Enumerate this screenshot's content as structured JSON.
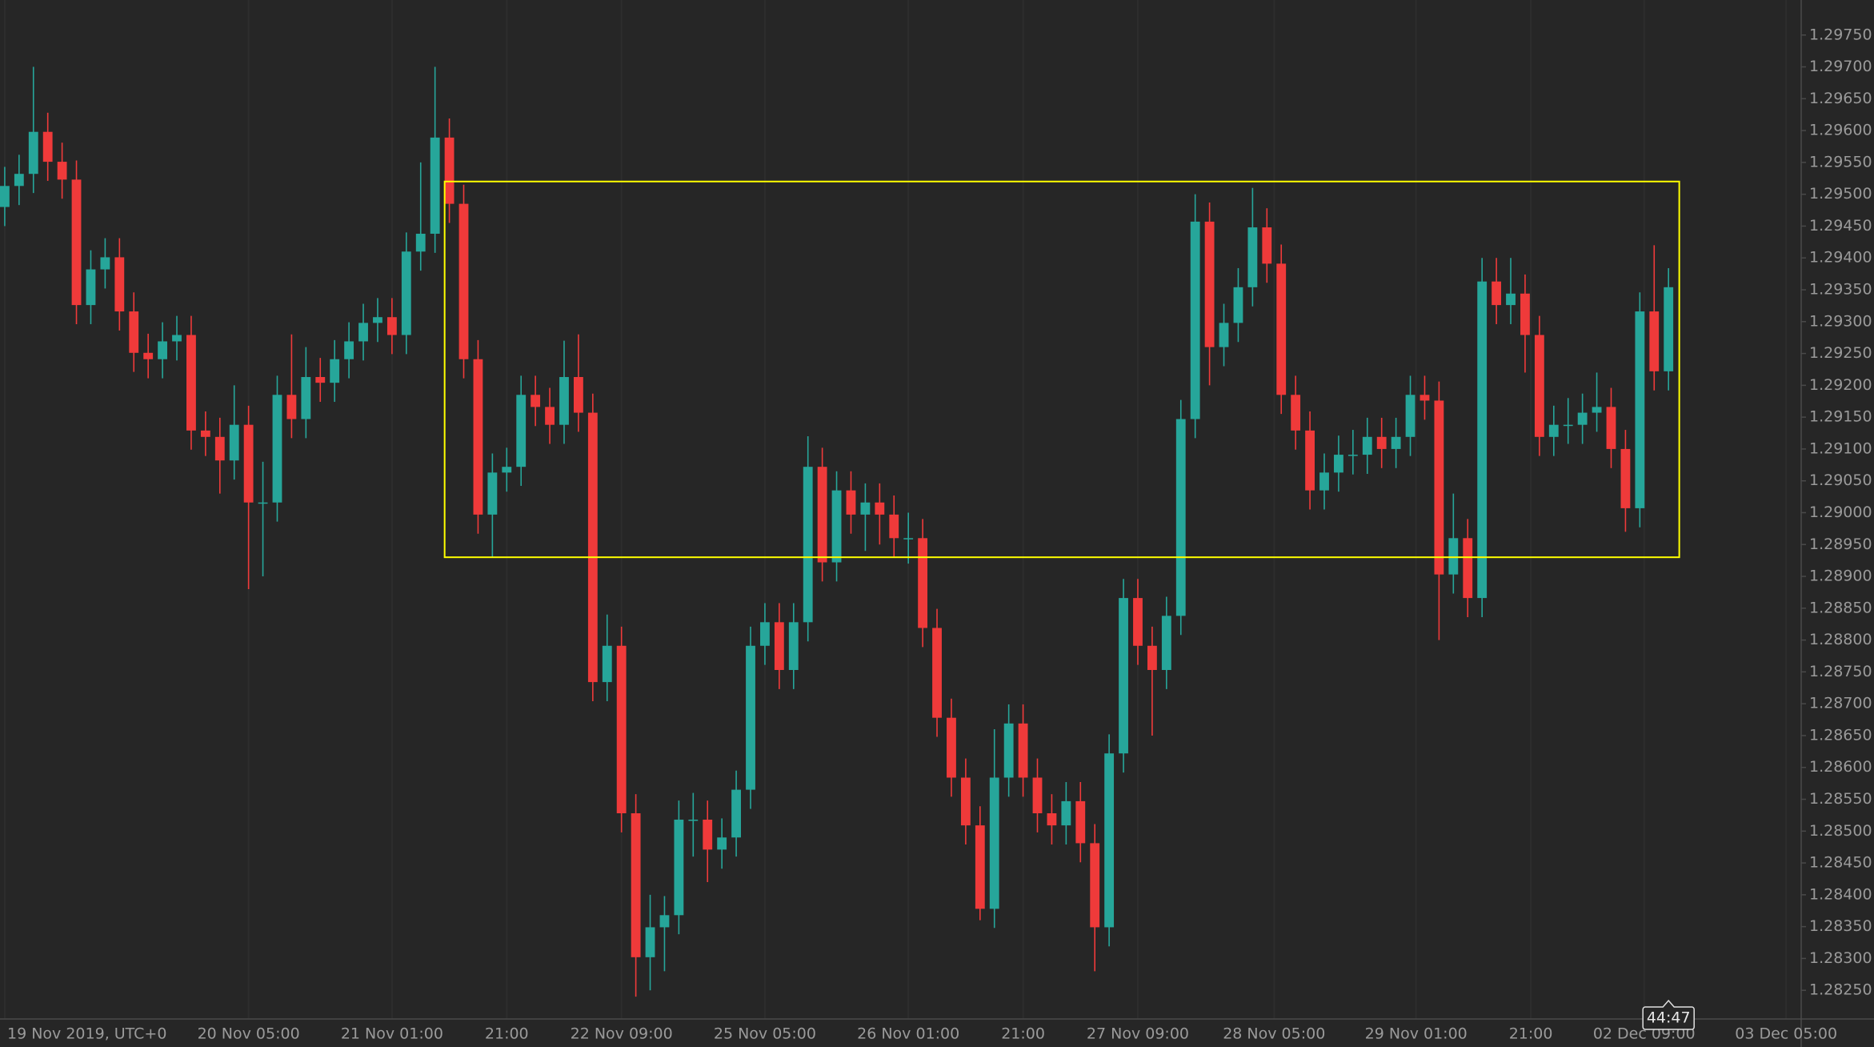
{
  "chart_data": {
    "type": "candlestick",
    "up_color": "#26a69a",
    "down_color": "#ef3a3a",
    "grid": true,
    "xlim": [
      -0.33,
      125.25
    ],
    "ylim": [
      1.28205,
      1.29805
    ],
    "rectangle": {
      "x": [
        30.67,
        116.75
      ],
      "y": [
        1.2893,
        1.2952
      ],
      "color": "#ffff00"
    },
    "countdown": "44:47",
    "xticks": [
      {
        "value": 0,
        "label": "19 Nov 2019, UTC+0"
      },
      {
        "value": 17,
        "label": "20 Nov 05:00"
      },
      {
        "value": 27,
        "label": "21 Nov 01:00"
      },
      {
        "value": 35,
        "label": "21:00"
      },
      {
        "value": 43,
        "label": "22 Nov 09:00"
      },
      {
        "value": 53,
        "label": "25 Nov 05:00"
      },
      {
        "value": 63,
        "label": "26 Nov 01:00"
      },
      {
        "value": 71,
        "label": "21:00"
      },
      {
        "value": 79,
        "label": "27 Nov 09:00"
      },
      {
        "value": 88.5,
        "label": "28 Nov 05:00"
      },
      {
        "value": 98.4,
        "label": "29 Nov 01:00"
      },
      {
        "value": 106.4,
        "label": "21:00"
      },
      {
        "value": 114.3,
        "label": "02 Dec 09:00"
      },
      {
        "value": 124.2,
        "label": "03 Dec 05:00"
      }
    ],
    "yticks": [
      {
        "value": 1.2825,
        "label": "1.28250"
      },
      {
        "value": 1.283,
        "label": "1.28300"
      },
      {
        "value": 1.2835,
        "label": "1.28350"
      },
      {
        "value": 1.284,
        "label": "1.28400"
      },
      {
        "value": 1.2845,
        "label": "1.28450"
      },
      {
        "value": 1.285,
        "label": "1.28500"
      },
      {
        "value": 1.2855,
        "label": "1.28550"
      },
      {
        "value": 1.286,
        "label": "1.28600"
      },
      {
        "value": 1.2865,
        "label": "1.28650"
      },
      {
        "value": 1.287,
        "label": "1.28700"
      },
      {
        "value": 1.2875,
        "label": "1.28750"
      },
      {
        "value": 1.288,
        "label": "1.28800"
      },
      {
        "value": 1.2885,
        "label": "1.28850"
      },
      {
        "value": 1.289,
        "label": "1.28900"
      },
      {
        "value": 1.2895,
        "label": "1.28950"
      },
      {
        "value": 1.29,
        "label": "1.29000"
      },
      {
        "value": 1.2905,
        "label": "1.29050"
      },
      {
        "value": 1.291,
        "label": "1.29100"
      },
      {
        "value": 1.2915,
        "label": "1.29150"
      },
      {
        "value": 1.292,
        "label": "1.29200"
      },
      {
        "value": 1.2925,
        "label": "1.29250"
      },
      {
        "value": 1.293,
        "label": "1.29300"
      },
      {
        "value": 1.2935,
        "label": "1.29350"
      },
      {
        "value": 1.294,
        "label": "1.29400"
      },
      {
        "value": 1.2945,
        "label": "1.29450"
      },
      {
        "value": 1.295,
        "label": "1.29500"
      },
      {
        "value": 1.2955,
        "label": "1.29550"
      },
      {
        "value": 1.296,
        "label": "1.29600"
      },
      {
        "value": 1.2965,
        "label": "1.29650"
      },
      {
        "value": 1.297,
        "label": "1.29700"
      },
      {
        "value": 1.2975,
        "label": "1.29750"
      }
    ],
    "open": [
      1.2948,
      1.29513,
      1.29532,
      1.29598,
      1.29551,
      1.29523,
      1.29326,
      1.29382,
      1.29401,
      1.29316,
      1.29251,
      1.29241,
      1.29269,
      1.29279,
      1.29129,
      1.29119,
      1.29082,
      1.29138,
      1.29016,
      1.29016,
      1.29185,
      1.29147,
      1.29213,
      1.29204,
      1.29241,
      1.29269,
      1.29298,
      1.29307,
      1.29279,
      1.2941,
      1.29438,
      1.29589,
      1.29485,
      1.29241,
      1.28997,
      1.29063,
      1.29072,
      1.29185,
      1.29166,
      1.29138,
      1.29213,
      1.29157,
      1.28734,
      1.28791,
      1.28528,
      1.28302,
      1.28349,
      1.28368,
      1.28518,
      1.28518,
      1.28471,
      1.2849,
      1.28565,
      1.28791,
      1.28828,
      1.28753,
      1.28828,
      1.29072,
      1.28922,
      1.29035,
      1.28997,
      1.29016,
      1.28997,
      1.2896,
      1.2896,
      1.28819,
      1.28678,
      1.28584,
      1.28509,
      1.28378,
      1.28584,
      1.28669,
      1.28584,
      1.28528,
      1.28509,
      1.28547,
      1.28481,
      1.28349,
      1.28622,
      1.28866,
      1.28791,
      1.28753,
      1.28838,
      1.29147,
      1.29457,
      1.2926,
      1.29298,
      1.29354,
      1.29448,
      1.29391,
      1.29185,
      1.29129,
      1.29035,
      1.29063,
      1.29091,
      1.29091,
      1.29119,
      1.291,
      1.29119,
      1.29185,
      1.29176,
      1.28903,
      1.2896,
      1.28866,
      1.29363,
      1.29326,
      1.29344,
      1.29279,
      1.29119,
      1.29138,
      1.29138,
      1.29157,
      1.29166,
      1.291,
      1.29007,
      1.29316,
      1.29222
    ],
    "high": [
      1.29543,
      1.29562,
      1.297,
      1.29628,
      1.29581,
      1.29553,
      1.29412,
      1.29431,
      1.29431,
      1.29346,
      1.29281,
      1.29299,
      1.29309,
      1.29309,
      1.29159,
      1.29149,
      1.292,
      1.29168,
      1.2908,
      1.29215,
      1.2928,
      1.2926,
      1.29243,
      1.29271,
      1.29299,
      1.29328,
      1.29337,
      1.29337,
      1.2944,
      1.2955,
      1.297,
      1.29619,
      1.29515,
      1.29271,
      1.29093,
      1.29102,
      1.29215,
      1.29215,
      1.29196,
      1.2927,
      1.2928,
      1.29187,
      1.2884,
      1.28821,
      1.28558,
      1.284,
      1.28398,
      1.28548,
      1.2856,
      1.28548,
      1.2852,
      1.28595,
      1.28821,
      1.28858,
      1.28858,
      1.28858,
      1.2912,
      1.29102,
      1.29065,
      1.29065,
      1.29046,
      1.29046,
      1.29027,
      1.29,
      1.2899,
      1.28849,
      1.28708,
      1.28614,
      1.28539,
      1.2866,
      1.28699,
      1.28699,
      1.28614,
      1.28558,
      1.28577,
      1.28577,
      1.28511,
      1.28652,
      1.28896,
      1.28896,
      1.28821,
      1.28868,
      1.29177,
      1.295,
      1.29487,
      1.29328,
      1.29384,
      1.2951,
      1.29478,
      1.29421,
      1.29215,
      1.29159,
      1.29093,
      1.29121,
      1.2913,
      1.29149,
      1.29149,
      1.29149,
      1.29215,
      1.29215,
      1.29206,
      1.2903,
      1.2899,
      1.294,
      1.294,
      1.294,
      1.29374,
      1.29309,
      1.29168,
      1.2918,
      1.29187,
      1.2922,
      1.29196,
      1.2913,
      1.29346,
      1.2942,
      1.29384
    ],
    "low": [
      1.2945,
      1.29483,
      1.29502,
      1.29521,
      1.29493,
      1.29296,
      1.29296,
      1.29352,
      1.29286,
      1.29221,
      1.29211,
      1.29211,
      1.29239,
      1.29099,
      1.29089,
      1.2903,
      1.29052,
      1.2888,
      1.289,
      1.28986,
      1.29117,
      1.29117,
      1.29174,
      1.29174,
      1.29211,
      1.29239,
      1.29268,
      1.29249,
      1.29249,
      1.2938,
      1.29408,
      1.29455,
      1.29211,
      1.28967,
      1.2893,
      1.29033,
      1.29042,
      1.29136,
      1.29108,
      1.29108,
      1.29127,
      1.28704,
      1.28704,
      1.28498,
      1.2824,
      1.2825,
      1.2828,
      1.28338,
      1.2846,
      1.2842,
      1.28441,
      1.2846,
      1.28535,
      1.28761,
      1.28723,
      1.28723,
      1.28798,
      1.28892,
      1.28892,
      1.28967,
      1.2894,
      1.2895,
      1.2893,
      1.2892,
      1.28789,
      1.28648,
      1.28554,
      1.28479,
      1.2836,
      1.28348,
      1.28554,
      1.28554,
      1.28498,
      1.28479,
      1.28479,
      1.28451,
      1.2828,
      1.28319,
      1.28592,
      1.28761,
      1.2865,
      1.28723,
      1.28808,
      1.29117,
      1.292,
      1.2923,
      1.29268,
      1.29324,
      1.29361,
      1.29155,
      1.29099,
      1.29005,
      1.29005,
      1.29033,
      1.2906,
      1.29061,
      1.2907,
      1.2907,
      1.29089,
      1.29146,
      1.288,
      1.28873,
      1.28836,
      1.28836,
      1.29296,
      1.29296,
      1.2922,
      1.29089,
      1.29089,
      1.29108,
      1.29108,
      1.29127,
      1.2907,
      1.2897,
      1.28977,
      1.29192,
      1.29192
    ],
    "close": [
      1.29513,
      1.29532,
      1.29598,
      1.29551,
      1.29523,
      1.29326,
      1.29382,
      1.29401,
      1.29316,
      1.29251,
      1.29241,
      1.29269,
      1.29279,
      1.29129,
      1.29119,
      1.29082,
      1.29138,
      1.29016,
      1.29016,
      1.29185,
      1.29147,
      1.29213,
      1.29204,
      1.29241,
      1.29269,
      1.29298,
      1.29307,
      1.29279,
      1.2941,
      1.29438,
      1.29589,
      1.29485,
      1.29241,
      1.28997,
      1.29063,
      1.29072,
      1.29185,
      1.29166,
      1.29138,
      1.29213,
      1.29157,
      1.28734,
      1.28791,
      1.28528,
      1.28302,
      1.28349,
      1.28368,
      1.28518,
      1.28518,
      1.28471,
      1.2849,
      1.28565,
      1.28791,
      1.28828,
      1.28753,
      1.28828,
      1.29072,
      1.28922,
      1.29035,
      1.28997,
      1.29016,
      1.28997,
      1.2896,
      1.2896,
      1.28819,
      1.28678,
      1.28584,
      1.28509,
      1.28378,
      1.28584,
      1.28669,
      1.28584,
      1.28528,
      1.28509,
      1.28547,
      1.28481,
      1.28349,
      1.28622,
      1.28866,
      1.28791,
      1.28753,
      1.28838,
      1.29147,
      1.29457,
      1.2926,
      1.29298,
      1.29354,
      1.29448,
      1.29391,
      1.29185,
      1.29129,
      1.29035,
      1.29063,
      1.29091,
      1.29091,
      1.29119,
      1.291,
      1.29119,
      1.29185,
      1.29176,
      1.28903,
      1.2896,
      1.28866,
      1.29363,
      1.29326,
      1.29344,
      1.29279,
      1.29119,
      1.29138,
      1.29138,
      1.29157,
      1.29166,
      1.291,
      1.29007,
      1.29316,
      1.29222,
      1.29354
    ]
  }
}
